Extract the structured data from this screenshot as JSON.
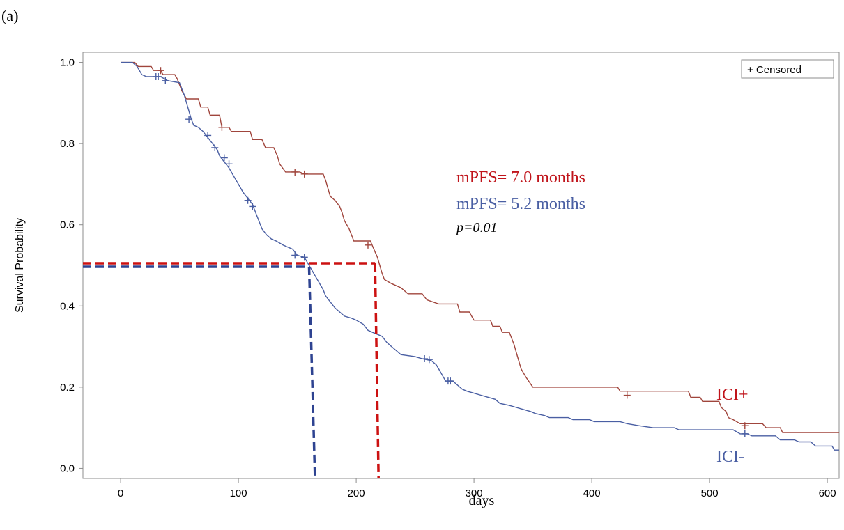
{
  "panel_label": "(a)",
  "legend": {
    "text": "+ Censored"
  },
  "annotations": {
    "mpfs_icip": "mPFS= 7.0 months",
    "mpfs_icin": "mPFS= 5.2 months",
    "pvalue": "p=0.01"
  },
  "colors": {
    "icip": "#a0453c",
    "icin": "#4a5fa3",
    "median_icip": "#cc1111",
    "median_icin": "#2e4391",
    "axis": "#8c8c8c"
  },
  "chart_data": {
    "type": "line",
    "title": "",
    "xlabel": "days",
    "ylabel": "Survival Probability",
    "xlim": [
      -32,
      610
    ],
    "ylim": [
      -0.025,
      1.025
    ],
    "xticks": [
      0,
      100,
      200,
      300,
      400,
      500,
      600
    ],
    "yticks": [
      0.0,
      0.2,
      0.4,
      0.6,
      0.8,
      1.0
    ],
    "xticklabels": [
      "0",
      "100",
      "200",
      "300",
      "400",
      "500",
      "600"
    ],
    "yticklabels": [
      "0.0",
      "0.2",
      "0.4",
      "0.6",
      "0.8",
      "1.0"
    ],
    "grid": false,
    "legend_position": "top-right",
    "series": [
      {
        "name": "ICI+",
        "color": "#a0453c",
        "points": [
          [
            0,
            1.0
          ],
          [
            12,
            1.0
          ],
          [
            15,
            0.99
          ],
          [
            26,
            0.99
          ],
          [
            28,
            0.98
          ],
          [
            34,
            0.98
          ],
          [
            36,
            0.97
          ],
          [
            46,
            0.97
          ],
          [
            48,
            0.96
          ],
          [
            52,
            0.93
          ],
          [
            56,
            0.91
          ],
          [
            66,
            0.91
          ],
          [
            68,
            0.89
          ],
          [
            74,
            0.89
          ],
          [
            76,
            0.87
          ],
          [
            84,
            0.87
          ],
          [
            86,
            0.84
          ],
          [
            92,
            0.84
          ],
          [
            94,
            0.83
          ],
          [
            110,
            0.83
          ],
          [
            112,
            0.81
          ],
          [
            120,
            0.81
          ],
          [
            123,
            0.79
          ],
          [
            130,
            0.79
          ],
          [
            133,
            0.77
          ],
          [
            135,
            0.75
          ],
          [
            140,
            0.73
          ],
          [
            152,
            0.73
          ],
          [
            156,
            0.725
          ],
          [
            172,
            0.725
          ],
          [
            174,
            0.71
          ],
          [
            176,
            0.69
          ],
          [
            178,
            0.67
          ],
          [
            182,
            0.66
          ],
          [
            186,
            0.645
          ],
          [
            188,
            0.63
          ],
          [
            190,
            0.61
          ],
          [
            194,
            0.59
          ],
          [
            196,
            0.575
          ],
          [
            198,
            0.56
          ],
          [
            212,
            0.56
          ],
          [
            215,
            0.54
          ],
          [
            218,
            0.52
          ],
          [
            220,
            0.5
          ],
          [
            222,
            0.48
          ],
          [
            224,
            0.465
          ],
          [
            230,
            0.455
          ],
          [
            238,
            0.445
          ],
          [
            244,
            0.43
          ],
          [
            256,
            0.43
          ],
          [
            260,
            0.415
          ],
          [
            270,
            0.405
          ],
          [
            286,
            0.405
          ],
          [
            288,
            0.385
          ],
          [
            296,
            0.385
          ],
          [
            300,
            0.365
          ],
          [
            314,
            0.365
          ],
          [
            316,
            0.35
          ],
          [
            322,
            0.35
          ],
          [
            324,
            0.335
          ],
          [
            330,
            0.335
          ],
          [
            332,
            0.32
          ],
          [
            334,
            0.305
          ],
          [
            336,
            0.285
          ],
          [
            338,
            0.265
          ],
          [
            340,
            0.245
          ],
          [
            344,
            0.225
          ],
          [
            350,
            0.2
          ],
          [
            422,
            0.2
          ],
          [
            424,
            0.19
          ],
          [
            482,
            0.19
          ],
          [
            484,
            0.175
          ],
          [
            492,
            0.175
          ],
          [
            494,
            0.165
          ],
          [
            508,
            0.165
          ],
          [
            510,
            0.15
          ],
          [
            514,
            0.14
          ],
          [
            516,
            0.125
          ],
          [
            520,
            0.12
          ],
          [
            526,
            0.11
          ],
          [
            545,
            0.11
          ],
          [
            548,
            0.1
          ],
          [
            560,
            0.1
          ],
          [
            562,
            0.088
          ],
          [
            610,
            0.088
          ]
        ],
        "censored": [
          [
            34,
            0.98
          ],
          [
            86,
            0.84
          ],
          [
            148,
            0.73
          ],
          [
            156,
            0.725
          ],
          [
            210,
            0.55
          ],
          [
            430,
            0.18
          ],
          [
            530,
            0.105
          ]
        ]
      },
      {
        "name": "ICI-",
        "color": "#4a5fa3",
        "points": [
          [
            0,
            1.0
          ],
          [
            10,
            1.0
          ],
          [
            14,
            0.99
          ],
          [
            18,
            0.97
          ],
          [
            22,
            0.965
          ],
          [
            34,
            0.965
          ],
          [
            40,
            0.955
          ],
          [
            50,
            0.95
          ],
          [
            54,
            0.92
          ],
          [
            56,
            0.9
          ],
          [
            58,
            0.88
          ],
          [
            60,
            0.86
          ],
          [
            62,
            0.845
          ],
          [
            66,
            0.84
          ],
          [
            70,
            0.83
          ],
          [
            78,
            0.8
          ],
          [
            82,
            0.785
          ],
          [
            84,
            0.77
          ],
          [
            88,
            0.755
          ],
          [
            92,
            0.74
          ],
          [
            96,
            0.72
          ],
          [
            100,
            0.7
          ],
          [
            104,
            0.68
          ],
          [
            108,
            0.665
          ],
          [
            112,
            0.65
          ],
          [
            114,
            0.635
          ],
          [
            116,
            0.62
          ],
          [
            118,
            0.605
          ],
          [
            120,
            0.59
          ],
          [
            124,
            0.575
          ],
          [
            128,
            0.565
          ],
          [
            132,
            0.56
          ],
          [
            138,
            0.55
          ],
          [
            146,
            0.54
          ],
          [
            150,
            0.525
          ],
          [
            156,
            0.52
          ],
          [
            158,
            0.51
          ],
          [
            160,
            0.5
          ],
          [
            162,
            0.49
          ],
          [
            164,
            0.48
          ],
          [
            166,
            0.47
          ],
          [
            168,
            0.46
          ],
          [
            170,
            0.45
          ],
          [
            172,
            0.44
          ],
          [
            174,
            0.425
          ],
          [
            178,
            0.41
          ],
          [
            182,
            0.395
          ],
          [
            186,
            0.385
          ],
          [
            190,
            0.375
          ],
          [
            196,
            0.37
          ],
          [
            200,
            0.365
          ],
          [
            206,
            0.355
          ],
          [
            210,
            0.34
          ],
          [
            214,
            0.335
          ],
          [
            222,
            0.325
          ],
          [
            226,
            0.31
          ],
          [
            230,
            0.3
          ],
          [
            234,
            0.29
          ],
          [
            238,
            0.28
          ],
          [
            250,
            0.275
          ],
          [
            256,
            0.27
          ],
          [
            264,
            0.265
          ],
          [
            268,
            0.255
          ],
          [
            270,
            0.245
          ],
          [
            272,
            0.235
          ],
          [
            274,
            0.225
          ],
          [
            276,
            0.215
          ],
          [
            282,
            0.215
          ],
          [
            286,
            0.205
          ],
          [
            290,
            0.195
          ],
          [
            294,
            0.19
          ],
          [
            300,
            0.185
          ],
          [
            306,
            0.18
          ],
          [
            312,
            0.175
          ],
          [
            318,
            0.17
          ],
          [
            322,
            0.16
          ],
          [
            330,
            0.155
          ],
          [
            336,
            0.15
          ],
          [
            342,
            0.145
          ],
          [
            348,
            0.14
          ],
          [
            352,
            0.135
          ],
          [
            360,
            0.13
          ],
          [
            364,
            0.125
          ],
          [
            380,
            0.125
          ],
          [
            384,
            0.12
          ],
          [
            398,
            0.12
          ],
          [
            402,
            0.115
          ],
          [
            424,
            0.115
          ],
          [
            430,
            0.11
          ],
          [
            440,
            0.105
          ],
          [
            452,
            0.1
          ],
          [
            470,
            0.1
          ],
          [
            474,
            0.095
          ],
          [
            520,
            0.095
          ],
          [
            526,
            0.085
          ],
          [
            532,
            0.085
          ],
          [
            536,
            0.08
          ],
          [
            556,
            0.08
          ],
          [
            560,
            0.07
          ],
          [
            572,
            0.07
          ],
          [
            576,
            0.065
          ],
          [
            586,
            0.065
          ],
          [
            590,
            0.055
          ],
          [
            604,
            0.055
          ],
          [
            606,
            0.045
          ],
          [
            610,
            0.045
          ]
        ],
        "censored": [
          [
            30,
            0.965
          ],
          [
            32,
            0.965
          ],
          [
            38,
            0.955
          ],
          [
            58,
            0.86
          ],
          [
            74,
            0.82
          ],
          [
            80,
            0.79
          ],
          [
            88,
            0.765
          ],
          [
            92,
            0.75
          ],
          [
            108,
            0.66
          ],
          [
            112,
            0.645
          ],
          [
            148,
            0.525
          ],
          [
            156,
            0.52
          ],
          [
            258,
            0.27
          ],
          [
            262,
            0.268
          ],
          [
            278,
            0.215
          ],
          [
            280,
            0.215
          ],
          [
            530,
            0.085
          ]
        ]
      }
    ],
    "median_lines": [
      {
        "name": "ICI+",
        "y": 0.5,
        "x_end": 216,
        "drop_end_x": 219
      },
      {
        "name": "ICI-",
        "y": 0.5,
        "x_end": 160,
        "drop_end_x": 165
      }
    ]
  }
}
